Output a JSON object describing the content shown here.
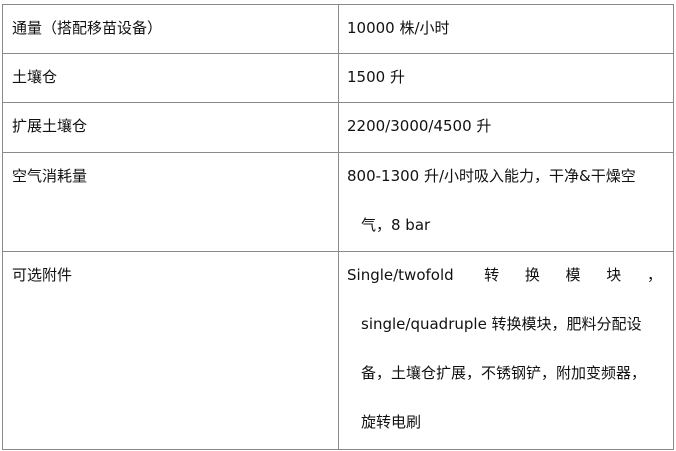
{
  "table": {
    "rows": [
      {
        "label": "通量（搭配移苗设备）",
        "value_lines": [
          "10000 株/小时"
        ]
      },
      {
        "label": "土壤仓",
        "value_lines": [
          "1500 升"
        ]
      },
      {
        "label": "扩展土壤仓",
        "value_lines": [
          "2200/3000/4500 升"
        ]
      },
      {
        "label": "空气消耗量",
        "value_lines": [
          "800-1300 升/小时吸入能力，干净&干燥空",
          "气，8 bar"
        ]
      },
      {
        "label": "可选附件",
        "value_lines": [
          "Single/twofold 转换模块，",
          "single/quadruple 转换模块，肥料分配设",
          "备，土壤仓扩展，不锈钢铲，附加变频器，",
          "旋转电刷"
        ]
      }
    ]
  }
}
